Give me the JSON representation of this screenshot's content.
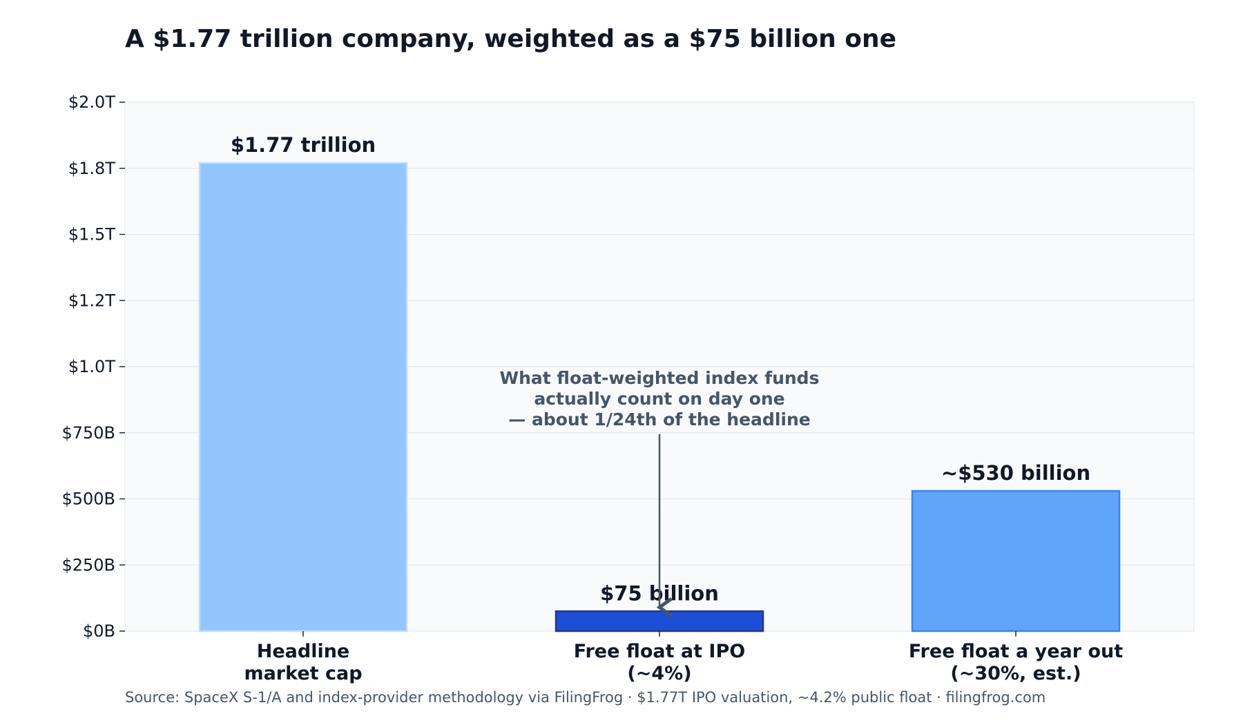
{
  "chart_data": {
    "type": "bar",
    "title": "A $1.77 trillion company, weighted as a $75 billion one",
    "xlabel": "",
    "ylabel": "",
    "ylim": [
      0,
      2000
    ],
    "y_unit": "billion USD",
    "grid": true,
    "categories": [
      {
        "lines": [
          "Headline",
          "market cap"
        ]
      },
      {
        "lines": [
          "Free float at IPO",
          "(~4%)"
        ]
      },
      {
        "lines": [
          "Free float a year out",
          "(~30%, est.)"
        ]
      }
    ],
    "values": [
      1770,
      75,
      530
    ],
    "data_labels": [
      "$1.77 trillion",
      "$75 billion",
      "~$530 billion"
    ],
    "bar_colors": [
      "#93c5fd",
      "#1d4ed8",
      "#60a5fa"
    ],
    "bar_edge_colors": [
      "#bfdbfe",
      "#1e3a8a",
      "#3b82f6"
    ],
    "y_ticks": [
      {
        "value": 0,
        "label": "$0B"
      },
      {
        "value": 250,
        "label": "$250B"
      },
      {
        "value": 500,
        "label": "$500B"
      },
      {
        "value": 750,
        "label": "$750B"
      },
      {
        "value": 1000,
        "label": "$1.0T"
      },
      {
        "value": 1250,
        "label": "$1.2T"
      },
      {
        "value": 1500,
        "label": "$1.5T"
      },
      {
        "value": 1750,
        "label": "$1.8T"
      },
      {
        "value": 2000,
        "label": "$2.0T"
      }
    ],
    "annotation": {
      "lines": [
        "What float-weighted index funds",
        "actually count on day one",
        "— about 1/24th of the headline"
      ],
      "target_category_index": 1,
      "arrow_from_value": 745,
      "arrow_to_value": 90,
      "color": "#475569"
    },
    "colors": {
      "plot_background": "#f8fafc",
      "grid": "#e2e8f0",
      "text": "#111827",
      "axis": "#1f2937"
    }
  },
  "source": "Source: SpaceX S-1/A and index-provider methodology via FilingFrog  ·  $1.77T IPO valuation, ~4.2% public float  ·  filingfrog.com"
}
